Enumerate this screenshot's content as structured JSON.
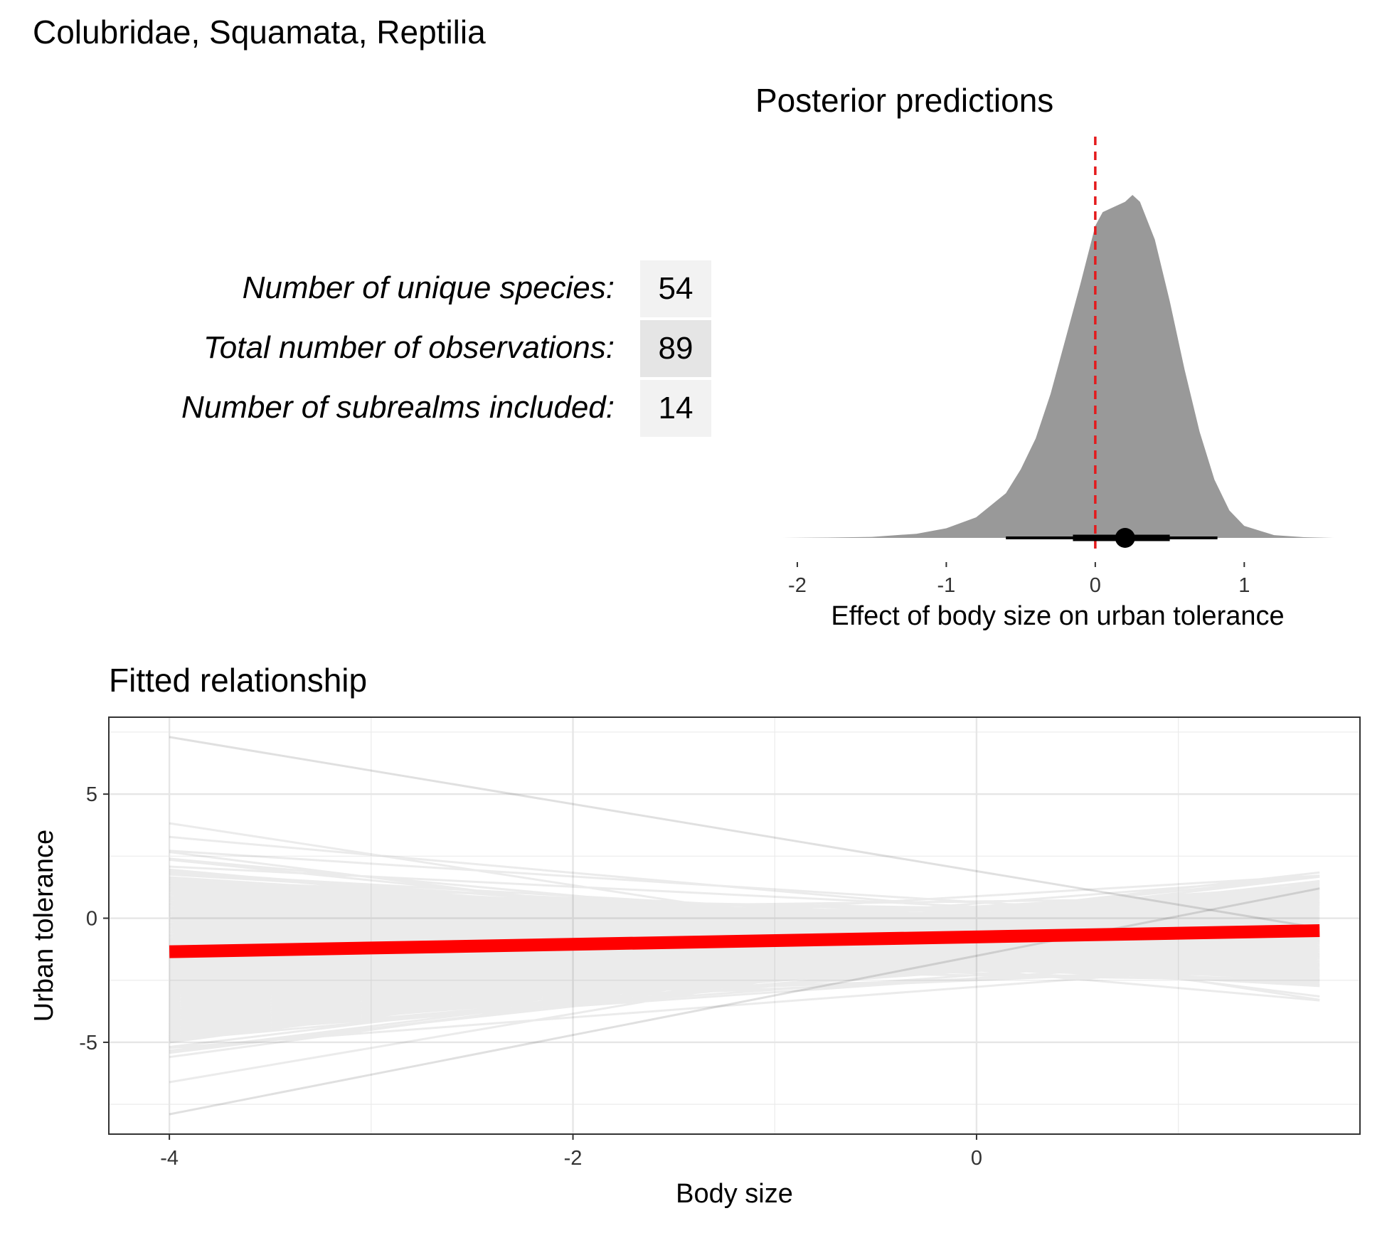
{
  "figure": {
    "title": "Colubridae, Squamata, Reptilia"
  },
  "stats": [
    {
      "label": "Number of unique species:",
      "value": "54",
      "shade": "#f2f2f2"
    },
    {
      "label": "Total number of observations:",
      "value": "89",
      "shade": "#e5e5e5"
    },
    {
      "label": "Number of subrealms included:",
      "value": "14",
      "shade": "#f2f2f2"
    }
  ],
  "chart_data": [
    {
      "type": "area",
      "title": "Posterior predictions",
      "xlabel": "Effect of body size on urban tolerance",
      "ylabel": "",
      "xlim": [
        -2.1,
        1.6
      ],
      "x_ticks": [
        -2,
        -1,
        0,
        1
      ],
      "x_tick_labels": [
        "-2",
        "-1",
        "0",
        "1"
      ],
      "grid": false,
      "density": [
        [
          -2.1,
          0.0
        ],
        [
          -1.8,
          0.001
        ],
        [
          -1.5,
          0.003
        ],
        [
          -1.2,
          0.012
        ],
        [
          -1.0,
          0.028
        ],
        [
          -0.8,
          0.06
        ],
        [
          -0.6,
          0.13
        ],
        [
          -0.5,
          0.2
        ],
        [
          -0.4,
          0.29
        ],
        [
          -0.3,
          0.42
        ],
        [
          -0.2,
          0.58
        ],
        [
          -0.1,
          0.74
        ],
        [
          0.0,
          0.91
        ],
        [
          0.05,
          0.95
        ],
        [
          0.1,
          0.96
        ],
        [
          0.2,
          0.98
        ],
        [
          0.25,
          1.0
        ],
        [
          0.3,
          0.98
        ],
        [
          0.4,
          0.87
        ],
        [
          0.5,
          0.69
        ],
        [
          0.6,
          0.49
        ],
        [
          0.7,
          0.31
        ],
        [
          0.8,
          0.17
        ],
        [
          0.9,
          0.08
        ],
        [
          1.0,
          0.035
        ],
        [
          1.2,
          0.008
        ],
        [
          1.4,
          0.002
        ],
        [
          1.6,
          0.0
        ]
      ],
      "reference_line": {
        "x": 0,
        "color": "#e41a1c"
      },
      "point_interval": {
        "median": 0.2,
        "inner": [
          -0.15,
          0.5
        ],
        "outer": [
          -0.6,
          0.82
        ]
      },
      "fill_color": "#999999"
    },
    {
      "type": "line",
      "title": "Fitted relationship",
      "xlabel": "Body size",
      "ylabel": "Urban tolerance",
      "xlim": [
        -4.3,
        1.9
      ],
      "ylim": [
        -8.7,
        8.1
      ],
      "x_ticks": [
        -4,
        -2,
        0
      ],
      "x_tick_labels": [
        "-4",
        "-2",
        "0"
      ],
      "y_ticks": [
        -5,
        0,
        5
      ],
      "y_tick_labels": [
        "-5",
        "0",
        "5"
      ],
      "grid": true,
      "x_range": [
        -4,
        1.7
      ],
      "series": [
        {
          "values": [
            -1.35,
            -0.5
          ],
          "color": "#ff0000"
        }
      ],
      "draws": {
        "count": 1000,
        "intercept_mean": -0.85,
        "intercept_sd": 0.55,
        "slope_mean": 0.2,
        "slope_sd": 0.36,
        "color": "#000000",
        "opacity": 0.08,
        "outliers": [
          {
            "values": [
              7.3,
              -0.4
            ]
          },
          {
            "values": [
              -7.9,
              1.2
            ]
          }
        ]
      }
    }
  ]
}
